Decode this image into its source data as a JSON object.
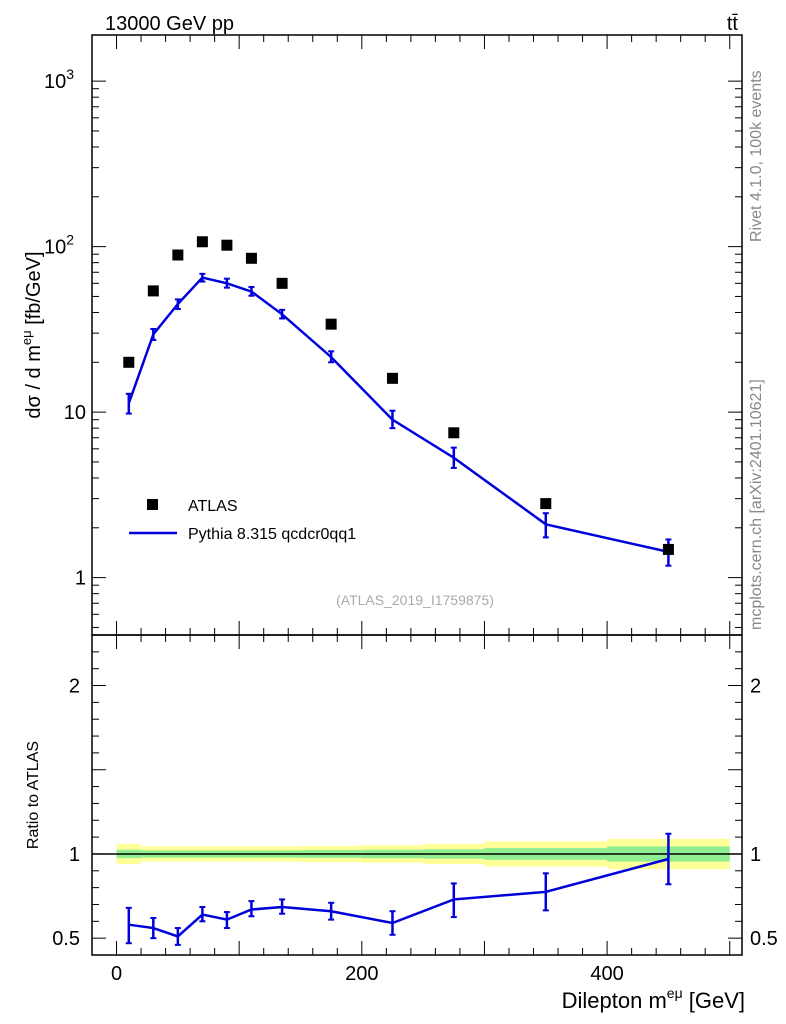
{
  "header": {
    "energy_label": "13000 GeV pp",
    "process_label": "tt̄"
  },
  "side_labels": {
    "rivet": "Rivet 4.1.0,  100k events",
    "source": "mcplots.cern.ch [arXiv:2401.10621]"
  },
  "colors": {
    "data": "#000000",
    "mc": "#0000dd",
    "band_inner": "#90ee90",
    "band_outer": "#ffff99",
    "axis": "#000000"
  },
  "chart_data": [
    {
      "type": "line",
      "title": "",
      "analysis_label": "(ATLAS_2019_I1759875)",
      "xlabel": "Dilepton m^eμ [GeV]",
      "ylabel": "dσ / d m^eμ [fb/GeV]",
      "ylabel_sup": "eμ",
      "yscale": "log",
      "xlim": [
        -20,
        510
      ],
      "ylim": [
        0.45,
        1900
      ],
      "y_ticks": [
        {
          "value": 1,
          "label": "1"
        },
        {
          "value": 10,
          "label": "10"
        },
        {
          "value": 100,
          "label": "10",
          "sup": "2"
        },
        {
          "value": 1000,
          "label": "10",
          "sup": "3"
        }
      ],
      "legend": {
        "position": "lower-left",
        "entries": [
          {
            "name": "ATLAS",
            "marker": "square"
          },
          {
            "name": "Pythia 8.315 qcdcr0qq1",
            "marker": "line"
          }
        ]
      },
      "series": [
        {
          "name": "ATLAS",
          "x": [
            10,
            30,
            50,
            70,
            90,
            110,
            135,
            175,
            225,
            275,
            350,
            450
          ],
          "values": [
            20,
            54,
            89,
            107,
            102,
            85,
            60,
            34,
            16,
            7.5,
            2.8,
            1.48
          ]
        },
        {
          "name": "Pythia 8.315 qcdcr0qq1",
          "x": [
            10,
            30,
            50,
            70,
            90,
            110,
            135,
            175,
            225,
            275,
            350,
            450
          ],
          "values": [
            11.3,
            29.5,
            45,
            65,
            60,
            53.5,
            39,
            21.5,
            9,
            5.3,
            2.1,
            1.43
          ],
          "err_low": [
            9.8,
            27.3,
            42,
            61.5,
            56.5,
            50.5,
            36.8,
            20,
            8,
            4.6,
            1.75,
            1.18
          ],
          "err_high": [
            12.9,
            31.8,
            48,
            68.5,
            64,
            57,
            41.5,
            23.3,
            10.2,
            6.1,
            2.45,
            1.7
          ]
        }
      ]
    },
    {
      "type": "line",
      "title": "",
      "xlabel": "Dilepton m^eμ [GeV]",
      "ylabel": "Ratio to ATLAS",
      "yscale": "linear",
      "xlim": [
        -20,
        510
      ],
      "ylim": [
        0.4,
        2.3
      ],
      "x_ticks": [
        0,
        200,
        400
      ],
      "y_ticks": [
        0.5,
        1,
        2
      ],
      "reference_line": 1,
      "bands": {
        "edges": [
          0,
          20,
          40,
          60,
          80,
          100,
          120,
          150,
          200,
          250,
          300,
          400,
          500
        ],
        "inner_low": [
          0.975,
          0.978,
          0.978,
          0.978,
          0.978,
          0.978,
          0.978,
          0.977,
          0.975,
          0.972,
          0.965,
          0.955
        ],
        "inner_high": [
          1.025,
          1.022,
          1.022,
          1.022,
          1.022,
          1.022,
          1.022,
          1.023,
          1.025,
          1.028,
          1.035,
          1.045
        ],
        "outer_low": [
          0.94,
          0.955,
          0.955,
          0.955,
          0.955,
          0.955,
          0.955,
          0.952,
          0.948,
          0.94,
          0.925,
          0.91
        ],
        "outer_high": [
          1.06,
          1.045,
          1.045,
          1.045,
          1.045,
          1.045,
          1.045,
          1.048,
          1.052,
          1.06,
          1.075,
          1.09
        ]
      },
      "series": [
        {
          "name": "Pythia 8.315 qcdcr0qq1 / ATLAS",
          "x": [
            10,
            30,
            50,
            70,
            90,
            110,
            135,
            175,
            225,
            275,
            350,
            450
          ],
          "values": [
            0.58,
            0.56,
            0.51,
            0.64,
            0.61,
            0.67,
            0.685,
            0.66,
            0.59,
            0.73,
            0.775,
            0.97
          ],
          "err_low": [
            0.47,
            0.5,
            0.46,
            0.6,
            0.56,
            0.63,
            0.645,
            0.61,
            0.52,
            0.625,
            0.665,
            0.82
          ],
          "err_high": [
            0.68,
            0.62,
            0.56,
            0.685,
            0.655,
            0.72,
            0.73,
            0.71,
            0.66,
            0.825,
            0.885,
            1.12
          ]
        }
      ]
    }
  ]
}
